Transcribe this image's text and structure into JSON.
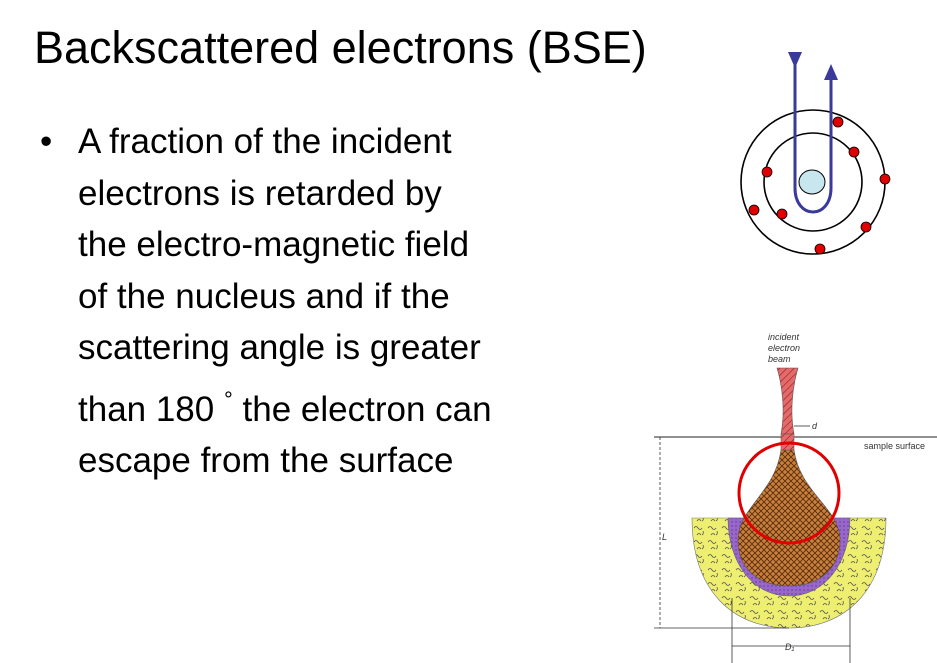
{
  "slide": {
    "title": "Backscattered electrons (BSE)",
    "bullet_symbol": "•",
    "bullet_lines": [
      "A fraction of the incident",
      "electrons is retarded by",
      "the electro-magnetic field",
      "of the nucleus and if the",
      "scattering angle is greater",
      "than 180",
      "the electron can",
      "escape from the surface"
    ],
    "degree_symbol": "°"
  },
  "figure_beam": {
    "label_incident_1": "incident",
    "label_incident_2": "electron",
    "label_incident_3": "beam",
    "label_d": "d",
    "label_surface": "sample surface",
    "label_L": "L",
    "label_D1": "D₁"
  },
  "colors": {
    "electron": "#e00000",
    "path": "#3a3a9a",
    "nucleus": "#c8e6ee",
    "highlight_circle": "#e00000",
    "beam": "#d84040",
    "interaction_volume": "#c8803a",
    "purple_band": "#9966cc",
    "yellow_band": "#eeee70"
  }
}
